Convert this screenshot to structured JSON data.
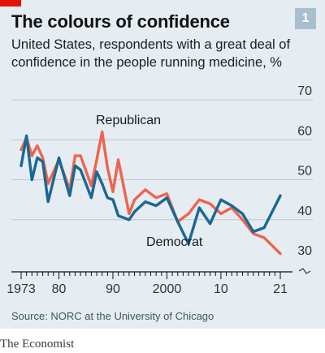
{
  "header": {
    "title": "The colours of confidence",
    "badge": "1",
    "subtitle": "United States, respondents with a great deal of confidence in the people running medicine, %"
  },
  "chart_data": {
    "type": "line",
    "ylim": [
      30,
      70
    ],
    "yticks": [
      "30",
      "40",
      "50",
      "60",
      "70"
    ],
    "xlim": [
      1973,
      2021
    ],
    "xticks": [
      {
        "year": 1973,
        "label": "1973"
      },
      {
        "year": 1980,
        "label": "80"
      },
      {
        "year": 1990,
        "label": "90"
      },
      {
        "year": 2000,
        "label": "2000"
      },
      {
        "year": 2010,
        "label": "10"
      },
      {
        "year": 2021,
        "label": "21"
      }
    ],
    "series": [
      {
        "name": "Republican",
        "color": "#f0634e",
        "x": [
          1973,
          1974,
          1975,
          1976,
          1977,
          1978,
          1980,
          1982,
          1983,
          1984,
          1986,
          1987,
          1988,
          1989,
          1990,
          1991,
          1993,
          1994,
          1996,
          1998,
          2000,
          2002,
          2004,
          2006,
          2008,
          2010,
          2012,
          2014,
          2016,
          2018,
          2021
        ],
        "y": [
          57.5,
          60.5,
          56,
          58.5,
          55.5,
          49,
          55,
          47.5,
          56,
          56,
          48.5,
          55,
          62,
          53,
          47,
          55,
          41.5,
          45,
          47.5,
          45.5,
          46.5,
          39.5,
          41.5,
          45,
          44,
          41.5,
          43,
          40,
          36.5,
          35.5,
          31.5
        ]
      },
      {
        "name": "Democrat",
        "color": "#1b6793",
        "x": [
          1973,
          1974,
          1975,
          1976,
          1977,
          1978,
          1980,
          1982,
          1983,
          1984,
          1986,
          1987,
          1988,
          1989,
          1990,
          1991,
          1993,
          1994,
          1996,
          1998,
          2000,
          2002,
          2004,
          2006,
          2008,
          2010,
          2012,
          2014,
          2016,
          2018,
          2021
        ],
        "y": [
          53.5,
          61,
          50,
          55.5,
          54.5,
          44.5,
          55.5,
          46,
          53.5,
          52.5,
          45.5,
          52,
          49,
          45.5,
          45,
          41,
          40,
          42,
          44.5,
          43.5,
          45.5,
          39.5,
          34,
          43,
          39,
          45,
          43.5,
          41.5,
          37,
          38,
          46
        ]
      }
    ],
    "annotations": [
      {
        "text": "Republican",
        "series": "Republican"
      },
      {
        "text": "Democrat",
        "series": "Democrat"
      }
    ]
  },
  "footer": {
    "source": "Source: NORC at the University of Chicago",
    "brand": "The Economist"
  }
}
